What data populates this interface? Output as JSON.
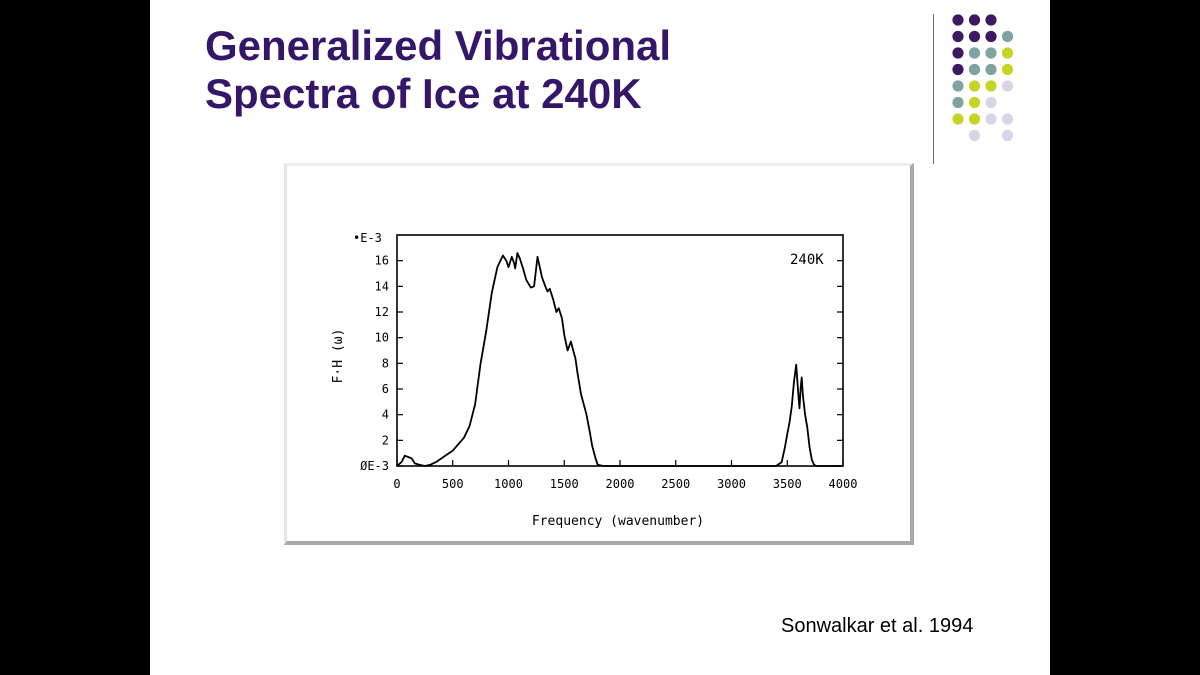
{
  "slide": {
    "title_lines": [
      "Generalized Vibrational",
      "Spectra of Ice at 240K"
    ],
    "citation": "Sonwalkar et al. 1994"
  },
  "colors": {
    "title": "#35176a",
    "dot_purple": "#3b1a5e",
    "dot_teal": "#7fa39f",
    "dot_lime": "#c6d427",
    "dot_lavender": "#d8d6e6",
    "plot_ink": "#000000"
  },
  "decoration": {
    "dot_grid": [
      [
        "purple",
        "purple",
        "purple",
        "none"
      ],
      [
        "purple",
        "purple",
        "purple",
        "teal"
      ],
      [
        "purple",
        "teal",
        "teal",
        "lime"
      ],
      [
        "purple",
        "teal",
        "teal",
        "lime"
      ],
      [
        "teal",
        "lime",
        "lime",
        "lavender"
      ],
      [
        "teal",
        "lime",
        "lavender",
        "none"
      ],
      [
        "lime",
        "lime",
        "lavender",
        "lavender"
      ],
      [
        "none",
        "lavender",
        "none",
        "lavender"
      ]
    ]
  },
  "chart_data": {
    "type": "line",
    "xlabel": "Frequency (wavenumber)",
    "ylabel": "F·H (ω)",
    "y_multiplier_label": "•E-3",
    "annotation": "240K",
    "xlim": [
      0,
      4000
    ],
    "ylim": [
      0,
      18
    ],
    "x_ticks": [
      0,
      500,
      1000,
      1500,
      2000,
      2500,
      3000,
      3500,
      4000
    ],
    "x_tick_labels": [
      "0",
      "500",
      "1000",
      "1500",
      "2000",
      "2500",
      "3000",
      "3500",
      "4000"
    ],
    "y_ticks": [
      0,
      2,
      4,
      6,
      8,
      10,
      12,
      14,
      16
    ],
    "y_tick_labels": [
      "ØE-3",
      "2",
      "4",
      "6",
      "8",
      "10",
      "12",
      "14",
      "16"
    ],
    "grid": false,
    "series": [
      {
        "x": [
          0,
          40,
          70,
          100,
          130,
          160,
          200,
          250,
          300,
          350,
          400,
          450,
          500,
          550,
          600,
          650,
          700,
          750,
          800,
          850,
          900,
          950,
          980,
          1000,
          1030,
          1050,
          1060,
          1080,
          1100,
          1130,
          1160,
          1200,
          1230,
          1260,
          1300,
          1330,
          1350,
          1370,
          1400,
          1430,
          1450,
          1480,
          1500,
          1530,
          1560,
          1580,
          1600,
          1620,
          1650,
          1700,
          1730,
          1750,
          1780,
          1800,
          1850,
          1900,
          2000,
          2500,
          3000,
          3400,
          3450,
          3480,
          3500,
          3520,
          3540,
          3560,
          3580,
          3600,
          3610,
          3620,
          3630,
          3640,
          3660,
          3680,
          3700,
          3720,
          3740,
          3760,
          3800,
          4000
        ],
        "y": [
          0,
          0.3,
          0.8,
          0.7,
          0.6,
          0.2,
          0.1,
          0,
          0.1,
          0.3,
          0.6,
          0.9,
          1.2,
          1.7,
          2.2,
          3.1,
          4.8,
          8.0,
          10.5,
          13.5,
          15.5,
          16.4,
          16.0,
          15.5,
          16.3,
          15.8,
          15.4,
          16.6,
          16.2,
          15.4,
          14.5,
          13.9,
          14.0,
          16.3,
          14.7,
          14.0,
          13.6,
          13.8,
          13.0,
          12.0,
          12.3,
          11.5,
          10.2,
          9.0,
          9.7,
          9.0,
          8.4,
          7.2,
          5.6,
          4.0,
          2.6,
          1.6,
          0.6,
          0.1,
          0,
          0,
          0,
          0,
          0,
          0,
          0.3,
          1.5,
          2.5,
          3.4,
          4.6,
          6.5,
          7.9,
          5.5,
          4.5,
          6.0,
          6.9,
          5.5,
          4.0,
          3.0,
          1.5,
          0.5,
          0.1,
          0,
          0,
          0
        ]
      }
    ]
  }
}
